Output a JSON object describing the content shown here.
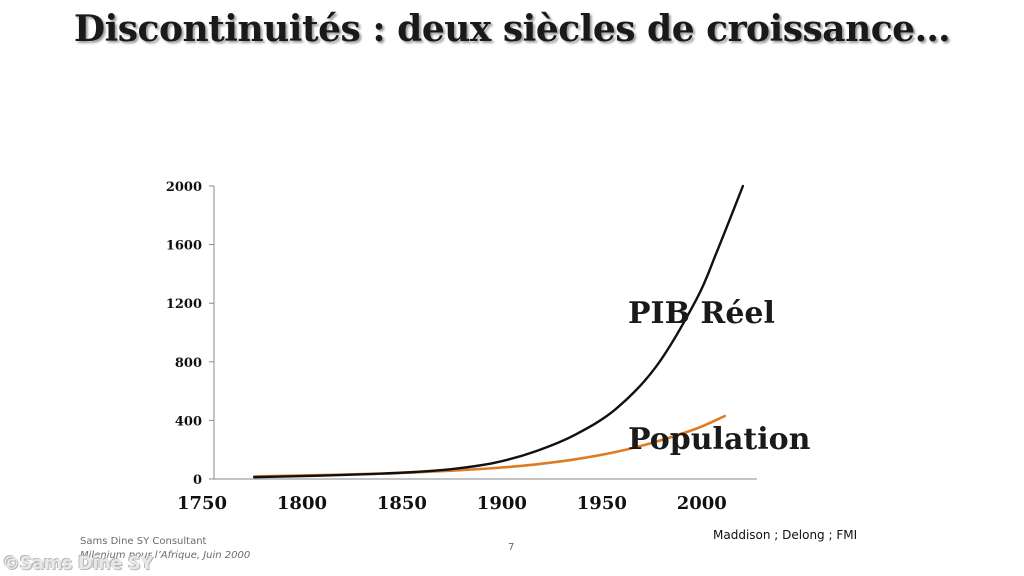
{
  "slide": {
    "title": "Discontinuités : deux siècles de croissance…",
    "page_number": "7",
    "footer_consultant": "Sams Dine SY Consultant",
    "footer_publication": "Milenium pour l’Afrique, Juin 2000",
    "sources": "Maddison ; Delong ; FMI",
    "watermark": "©Sams Dine SY"
  },
  "chart_data": {
    "type": "line",
    "title": "",
    "xlabel": "",
    "ylabel": "",
    "xlim": [
      1750,
      2020
    ],
    "ylim": [
      0,
      2000
    ],
    "x_ticks": [
      "1750",
      "1800",
      "1850",
      "1900",
      "1950",
      "2000"
    ],
    "y_ticks": [
      "0",
      "400",
      "800",
      "1200",
      "1600",
      "2000"
    ],
    "grid": false,
    "legend": "none",
    "series": [
      {
        "name": "PIB Réel",
        "color": "#111111",
        "points": [
          [
            1770,
            12
          ],
          [
            1800,
            22
          ],
          [
            1830,
            35
          ],
          [
            1850,
            48
          ],
          [
            1870,
            70
          ],
          [
            1890,
            112
          ],
          [
            1910,
            190
          ],
          [
            1930,
            305
          ],
          [
            1950,
            480
          ],
          [
            1970,
            770
          ],
          [
            1990,
            1230
          ],
          [
            2000,
            1550
          ],
          [
            2013,
            2000
          ]
        ]
      },
      {
        "name": "Population",
        "color": "#e07b25",
        "points": [
          [
            1770,
            18
          ],
          [
            1800,
            26
          ],
          [
            1830,
            36
          ],
          [
            1850,
            45
          ],
          [
            1870,
            58
          ],
          [
            1890,
            75
          ],
          [
            1910,
            100
          ],
          [
            1930,
            135
          ],
          [
            1950,
            185
          ],
          [
            1970,
            255
          ],
          [
            1990,
            345
          ],
          [
            2004,
            430
          ]
        ]
      }
    ]
  }
}
